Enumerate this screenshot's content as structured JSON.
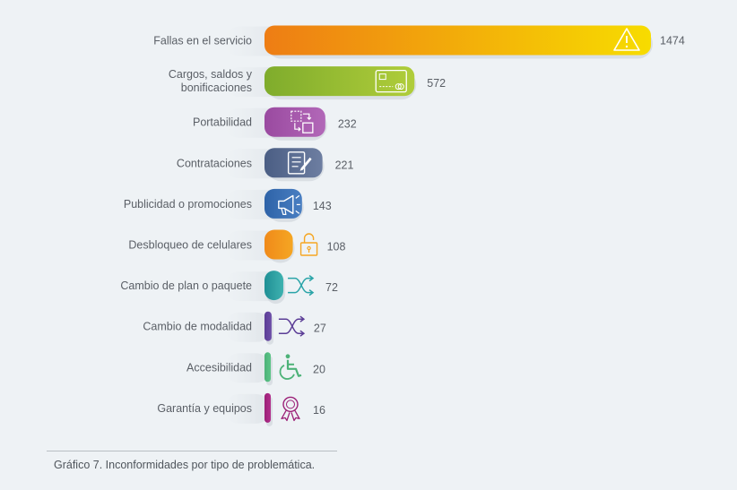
{
  "chart_data": {
    "type": "bar",
    "orientation": "horizontal",
    "categories": [
      [
        "Fallas en el servicio"
      ],
      [
        "Cargos, saldos y",
        "bonificaciones"
      ],
      [
        "Portabilidad"
      ],
      [
        "Contrataciones"
      ],
      [
        "Publicidad o promociones"
      ],
      [
        "Desbloqueo de celulares"
      ],
      [
        "Cambio de plan o paquete"
      ],
      [
        "Cambio de modalidad"
      ],
      [
        "Accesibilidad"
      ],
      [
        "Garantía y equipos"
      ]
    ],
    "values": [
      1474,
      572,
      232,
      221,
      143,
      108,
      72,
      27,
      20,
      16
    ],
    "value_labels": [
      "1474",
      "572",
      "232",
      "221",
      "143",
      "108",
      "72",
      "27",
      "20",
      "16"
    ],
    "bar_colors": [
      [
        "#ee7d14",
        "#f7dc00"
      ],
      [
        "#7fac2c",
        "#b0cd3a"
      ],
      [
        "#9a4aa0",
        "#b268b8"
      ],
      [
        "#4b5e84",
        "#6d7ea1"
      ],
      [
        "#2e63a8",
        "#4a7fc2"
      ],
      [
        "#f08a1a",
        "#f5a623"
      ],
      [
        "#1f8f95",
        "#3fb2b0"
      ],
      [
        "#5b3d96",
        "#6d4fa8"
      ],
      [
        "#4db278",
        "#5cc487"
      ],
      [
        "#9b1f77",
        "#b22f8c"
      ]
    ],
    "icons": [
      "warning-icon",
      "credit-card-icon",
      "portability-icon",
      "contract-icon",
      "megaphone-icon",
      "unlock-icon",
      "shuffle-icon",
      "shuffle-icon",
      "wheelchair-icon",
      "award-ribbon-icon"
    ],
    "icon_colors": [
      "#ffffff",
      "#ffffff",
      "#ffffff",
      "#ffffff",
      "#ffffff",
      "#f5a623",
      "#2aa4a8",
      "#5b3d96",
      "#4db278",
      "#9b1f77"
    ],
    "grid": false,
    "legend": "none",
    "title": "",
    "xlabel": "",
    "ylabel": ""
  },
  "caption": "Gráfico 7. Inconformidades por tipo de problemática."
}
